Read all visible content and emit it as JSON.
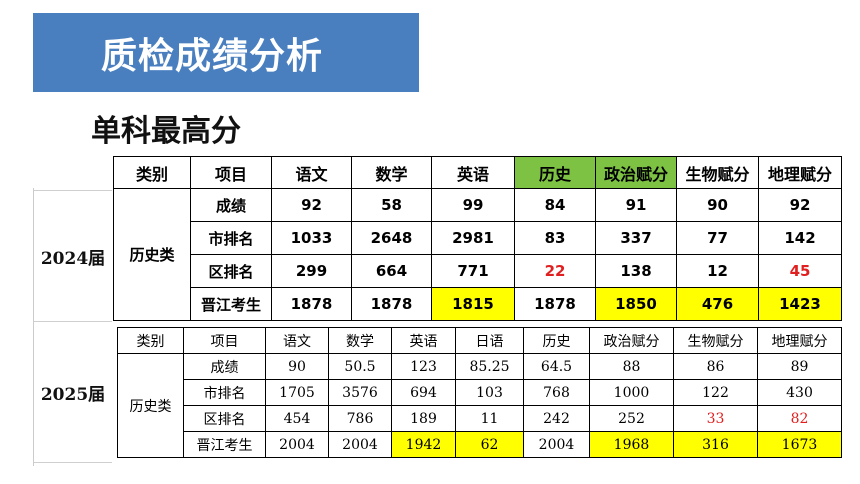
{
  "title": "质检成绩分析",
  "subtitle": "单科最高分",
  "colors": {
    "banner": "#4a7fbf",
    "highlight_yellow": "#ffff00",
    "highlight_green": "#7dc242",
    "red_text": "#e02020"
  },
  "table_2024": {
    "year_label": "2024届",
    "category": "历史类",
    "headers": [
      "类别",
      "项目",
      "语文",
      "数学",
      "英语",
      "历史",
      "政治赋分",
      "生物赋分",
      "地理赋分"
    ],
    "rows": [
      {
        "item": "成绩",
        "values": [
          "92",
          "58",
          "99",
          "84",
          "91",
          "90",
          "92"
        ]
      },
      {
        "item": "市排名",
        "values": [
          "1033",
          "2648",
          "2981",
          "83",
          "337",
          "77",
          "142"
        ]
      },
      {
        "item": "区排名",
        "values": [
          "299",
          "664",
          "771",
          "22",
          "138",
          "12",
          "45"
        ]
      },
      {
        "item": "晋江考生",
        "values": [
          "1878",
          "1878",
          "1815",
          "1878",
          "1850",
          "476",
          "1423"
        ]
      }
    ]
  },
  "table_2025": {
    "year_label": "2025届",
    "category": "历史类",
    "headers": [
      "类别",
      "项目",
      "语文",
      "数学",
      "英语",
      "日语",
      "历史",
      "政治赋分",
      "生物赋分",
      "地理赋分"
    ],
    "rows": [
      {
        "item": "成绩",
        "values": [
          "90",
          "50.5",
          "123",
          "85.25",
          "64.5",
          "88",
          "86",
          "89"
        ]
      },
      {
        "item": "市排名",
        "values": [
          "1705",
          "3576",
          "694",
          "103",
          "768",
          "1000",
          "122",
          "430"
        ]
      },
      {
        "item": "区排名",
        "values": [
          "454",
          "786",
          "189",
          "11",
          "242",
          "252",
          "33",
          "82"
        ]
      },
      {
        "item": "晋江考生",
        "values": [
          "2004",
          "2004",
          "1942",
          "62",
          "2004",
          "1968",
          "316",
          "1673"
        ]
      }
    ]
  }
}
